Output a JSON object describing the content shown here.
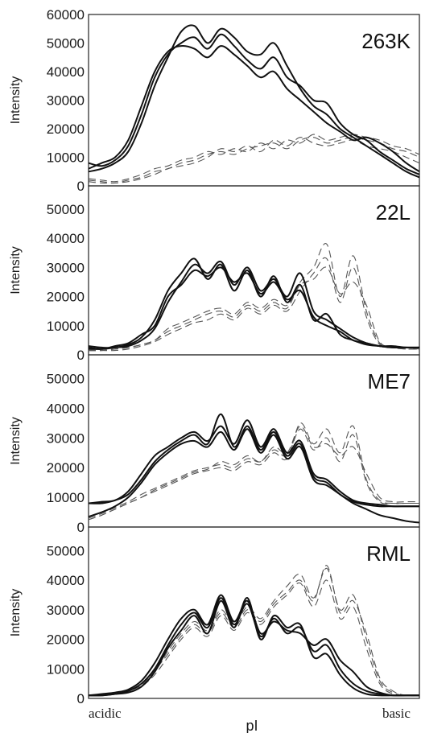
{
  "chart_data": {
    "type": "line",
    "xlabel": "pI",
    "x_start_label": "acidic",
    "x_end_label": "basic",
    "x": [
      0,
      0.04,
      0.08,
      0.12,
      0.16,
      0.2,
      0.24,
      0.28,
      0.32,
      0.36,
      0.4,
      0.44,
      0.48,
      0.52,
      0.56,
      0.6,
      0.64,
      0.68,
      0.72,
      0.76,
      0.8,
      0.84,
      0.88,
      0.92,
      0.96,
      1
    ],
    "panels": [
      {
        "title": "263K",
        "ylabel": "Intensity",
        "ylim": [
          0,
          60000
        ],
        "yticks": [
          "0",
          "10000",
          "20000",
          "30000",
          "40000",
          "50000",
          "60000"
        ],
        "solid_series": [
          {
            "values": [
              8000,
              7000,
              9000,
              14000,
              25000,
              38000,
              46000,
              50000,
              52000,
              48000,
              53000,
              49000,
              44000,
              41000,
              45000,
              38000,
              35000,
              30000,
              29000,
              22000,
              18000,
              16000,
              12000,
              9000,
              6000,
              4000
            ]
          },
          {
            "values": [
              5000,
              6000,
              8000,
              12000,
              22000,
              35000,
              45000,
              54000,
              56000,
              50000,
              55000,
              52000,
              47000,
              46000,
              50000,
              42000,
              34000,
              28000,
              25000,
              20000,
              17000,
              14000,
              11000,
              8000,
              5000,
              3000
            ]
          },
          {
            "values": [
              6000,
              8000,
              10000,
              16000,
              28000,
              40000,
              47000,
              49000,
              48000,
              45000,
              49000,
              46000,
              42000,
              38000,
              40000,
              34000,
              30000,
              26000,
              22000,
              19000,
              16000,
              17000,
              15000,
              12000,
              8000,
              5000
            ]
          }
        ],
        "dashed_series": [
          {
            "values": [
              2000,
              1500,
              1000,
              2000,
              3000,
              5000,
              6000,
              8000,
              9000,
              11000,
              12000,
              11000,
              13000,
              14000,
              15000,
              13000,
              16000,
              17000,
              15000,
              16000,
              17000,
              16000,
              15000,
              13000,
              12000,
              10000
            ]
          },
          {
            "values": [
              1500,
              1000,
              1000,
              1500,
              2500,
              4000,
              6000,
              7000,
              8000,
              10000,
              13000,
              12000,
              14000,
              12000,
              16000,
              14000,
              17000,
              15000,
              14000,
              15000,
              16000,
              14000,
              13000,
              12000,
              10000,
              8000
            ]
          },
          {
            "values": [
              2500,
              2000,
              1500,
              2500,
              4000,
              6000,
              7000,
              9000,
              10000,
              12000,
              11000,
              13000,
              12000,
              15000,
              13000,
              16000,
              15000,
              18000,
              16000,
              17000,
              18000,
              17000,
              16000,
              14000,
              13000,
              11000
            ]
          }
        ]
      },
      {
        "title": "22L",
        "ylabel": "Intensity",
        "ylim": [
          0,
          58000
        ],
        "yticks": [
          "0",
          "10000",
          "20000",
          "30000",
          "40000",
          "50000"
        ],
        "solid_series": [
          {
            "values": [
              2000,
              2000,
              2500,
              3000,
              5000,
              9000,
              18000,
              25000,
              31000,
              28000,
              32000,
              24000,
              30000,
              22000,
              26000,
              20000,
              28000,
              15000,
              12000,
              9000,
              6000,
              4000,
              3000,
              2500,
              2500,
              2500
            ]
          },
          {
            "values": [
              3000,
              2500,
              2500,
              3500,
              6000,
              12000,
              22000,
              28000,
              33000,
              26000,
              31000,
              22000,
              29000,
              20000,
              27000,
              18000,
              24000,
              12000,
              14000,
              7000,
              5000,
              3500,
              3000,
              2500,
              2500,
              2500
            ]
          },
          {
            "values": [
              2500,
              2000,
              3000,
              4000,
              7000,
              10000,
              20000,
              24000,
              29000,
              27000,
              30000,
              25000,
              28000,
              21000,
              25000,
              19000,
              22000,
              13000,
              10000,
              8000,
              5000,
              4000,
              3000,
              3000,
              2500,
              2500
            ]
          }
        ],
        "dashed_series": [
          {
            "values": [
              1500,
              1500,
              2000,
              2500,
              3500,
              5000,
              8000,
              10000,
              12000,
              14000,
              15000,
              13000,
              17000,
              15000,
              18000,
              16000,
              25000,
              30000,
              38000,
              20000,
              34000,
              15000,
              4000,
              2500,
              2000,
              2000
            ]
          },
          {
            "values": [
              1500,
              1500,
              1500,
              2000,
              3000,
              4500,
              7000,
              9000,
              11000,
              12000,
              14000,
              12000,
              16000,
              14000,
              17000,
              15000,
              22000,
              28000,
              33000,
              18000,
              30000,
              13000,
              3500,
              2500,
              2000,
              2000
            ]
          },
          {
            "values": [
              1500,
              1500,
              2000,
              2500,
              3500,
              5000,
              9000,
              11000,
              13000,
              15000,
              16000,
              14000,
              18000,
              16000,
              19000,
              17000,
              24000,
              26000,
              30000,
              21000,
              25000,
              17000,
              4500,
              3000,
              2500,
              2000
            ]
          }
        ]
      },
      {
        "title": "ME7",
        "ylabel": "Intensity",
        "ylim": [
          0,
          58000
        ],
        "yticks": [
          "0",
          "10000",
          "20000",
          "30000",
          "40000",
          "50000"
        ],
        "solid_series": [
          {
            "values": [
              8000,
              8500,
              9000,
              12000,
              18000,
              24000,
              27000,
              30000,
              32000,
              29000,
              34000,
              28000,
              36000,
              27000,
              33000,
              25000,
              29000,
              18000,
              16000,
              12000,
              9000,
              8000,
              7500,
              7000,
              7000,
              7000
            ]
          },
          {
            "values": [
              3500,
              5000,
              7000,
              10000,
              15000,
              21000,
              25000,
              28000,
              29000,
              27000,
              32000,
              26000,
              33000,
              25000,
              31000,
              23000,
              27000,
              16000,
              14000,
              11000,
              8000,
              6000,
              4000,
              3000,
              2000,
              1500
            ]
          },
          {
            "values": [
              8000,
              8000,
              9000,
              11000,
              16000,
              22000,
              26000,
              29000,
              31000,
              28000,
              38000,
              27000,
              34000,
              26000,
              32000,
              24000,
              28000,
              17000,
              15000,
              11000,
              8500,
              7500,
              7000,
              7000,
              7000,
              7000
            ]
          }
        ],
        "dashed_series": [
          {
            "values": [
              2500,
              4000,
              6000,
              8000,
              10000,
              12000,
              14000,
              16000,
              18000,
              19000,
              20000,
              19000,
              22000,
              21000,
              25000,
              23000,
              35000,
              28000,
              33000,
              25000,
              34000,
              16000,
              9000,
              8000,
              8000,
              8000
            ]
          },
          {
            "values": [
              3000,
              4500,
              6500,
              8500,
              11000,
              13000,
              15000,
              17000,
              19000,
              20000,
              21000,
              20000,
              23000,
              22000,
              26000,
              24000,
              33000,
              26000,
              30000,
              22000,
              31000,
              15000,
              8500,
              8000,
              8000,
              8000
            ]
          },
          {
            "values": [
              2500,
              4000,
              6000,
              8000,
              10000,
              12500,
              14500,
              16500,
              18500,
              19500,
              22000,
              21000,
              24000,
              22000,
              27000,
              25000,
              34000,
              27000,
              28000,
              24000,
              27000,
              18000,
              10000,
              8500,
              8500,
              8500
            ]
          }
        ]
      },
      {
        "title": "RML",
        "ylabel": "Intensity",
        "ylim": [
          0,
          58000
        ],
        "yticks": [
          "0",
          "10000",
          "20000",
          "30000",
          "40000",
          "50000"
        ],
        "solid_series": [
          {
            "values": [
              1000,
              1000,
              1500,
              2000,
              4000,
              9000,
              17000,
              23000,
              28000,
              22000,
              33000,
              24000,
              34000,
              20000,
              28000,
              24000,
              25000,
              14000,
              15000,
              8000,
              3500,
              1500,
              1000,
              1000,
              1000,
              1000
            ]
          },
          {
            "values": [
              1000,
              1500,
              2000,
              3000,
              6000,
              12000,
              20000,
              27000,
              30000,
              25000,
              35000,
              26000,
              33000,
              22000,
              26000,
              23000,
              22000,
              18000,
              20000,
              13000,
              9000,
              4000,
              2000,
              1000,
              1000,
              1000
            ]
          },
          {
            "values": [
              1000,
              1000,
              1500,
              2500,
              5000,
              10000,
              18000,
              25000,
              29000,
              24000,
              34000,
              25000,
              32000,
              21000,
              27000,
              22000,
              24000,
              16000,
              18000,
              10000,
              5000,
              2500,
              1500,
              1000,
              1000,
              1000
            ]
          }
        ],
        "dashed_series": [
          {
            "values": [
              1000,
              1000,
              1500,
              2500,
              5000,
              9000,
              16000,
              22000,
              26000,
              23000,
              30000,
              25000,
              31000,
              27000,
              33000,
              38000,
              42000,
              34000,
              44000,
              30000,
              35000,
              20000,
              6000,
              2000,
              1000,
              1000
            ]
          },
          {
            "values": [
              1000,
              1000,
              1500,
              2000,
              4000,
              8000,
              14000,
              20000,
              24000,
              21000,
              28000,
              23000,
              29000,
              25000,
              31000,
              35000,
              39000,
              31000,
              40000,
              27000,
              31000,
              17000,
              5000,
              1500,
              1000,
              1000
            ]
          },
          {
            "values": [
              1000,
              1000,
              1500,
              2500,
              4500,
              9500,
              15000,
              21000,
              25000,
              22000,
              29000,
              24000,
              30000,
              26000,
              32000,
              36000,
              40000,
              33000,
              45000,
              29000,
              33000,
              22000,
              7000,
              2500,
              1000,
              1000
            ]
          }
        ]
      }
    ]
  }
}
